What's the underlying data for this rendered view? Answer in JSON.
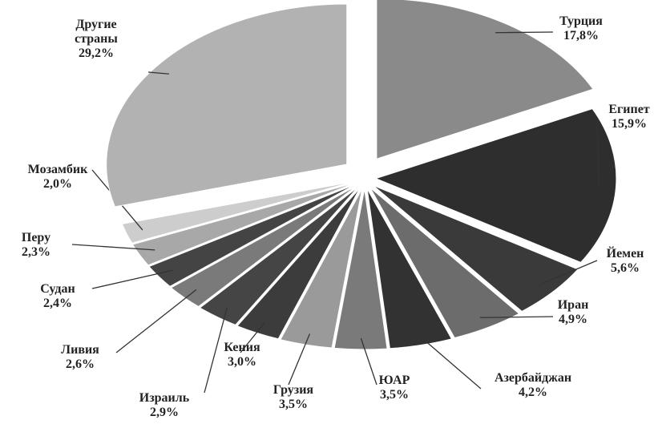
{
  "chart_data": {
    "type": "pie",
    "categories": [
      "Турция",
      "Египет",
      "Йемен",
      "Иран",
      "Азербайджан",
      "ЮАР",
      "Грузия",
      "Кения",
      "Израиль",
      "Ливия",
      "Судан",
      "Перу",
      "Мозамбик",
      "Другие страны"
    ],
    "values": [
      17.8,
      15.9,
      5.6,
      4.9,
      4.2,
      3.5,
      3.5,
      3.0,
      2.9,
      2.6,
      2.4,
      2.3,
      2.0,
      29.2
    ],
    "value_labels": [
      "17,8%",
      "15,9%",
      "5,6%",
      "4,9%",
      "4,2%",
      "3,5%",
      "3,5%",
      "3,0%",
      "2,9%",
      "2,6%",
      "2,4%",
      "2,3%",
      "2,0%",
      "29,2%"
    ],
    "colors": [
      "#8a8a8a",
      "#2e2e2e",
      "#3a3a3a",
      "#6c6c6c",
      "#323232",
      "#7a7a7a",
      "#9a9a9a",
      "#3c3c3c",
      "#454545",
      "#7a7a7a",
      "#444444",
      "#a8a8a8",
      "#cdcdcd",
      "#b2b2b2"
    ]
  }
}
